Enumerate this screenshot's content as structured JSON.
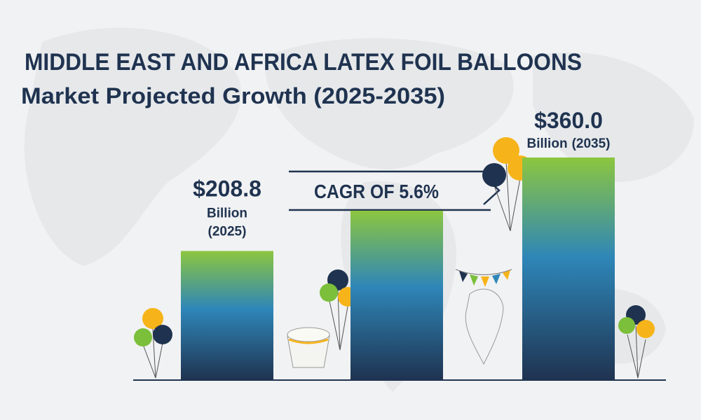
{
  "chart_data": {
    "type": "bar",
    "title": "MIDDLE EAST AND AFRICA LATEX FOIL BALLOONS",
    "subtitle": "Market   Projected Growth (2025-2035)",
    "categories": [
      "(2025)",
      null,
      "(2035)"
    ],
    "unit": "Billion",
    "values": [
      208.8,
      274,
      360
    ],
    "value_labels": [
      "$208.8",
      null,
      "$360.0"
    ],
    "annotation": "CAGR OF 5.6%",
    "color": "#1f3b5c"
  }
}
